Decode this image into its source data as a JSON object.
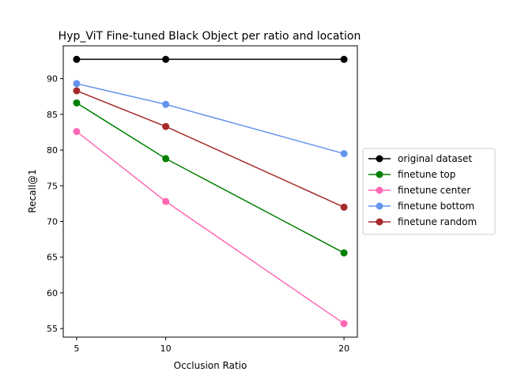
{
  "chart_data": {
    "type": "line",
    "title": "Hyp_ViT Fine-tuned Black Object per ratio and location",
    "xlabel": "Occlusion Ratio",
    "ylabel": "Recall@1",
    "x": [
      5,
      10,
      20
    ],
    "x_ticks": [
      "5",
      "10",
      "20"
    ],
    "xlim": [
      4.25,
      20.75
    ],
    "ylim": [
      53.8,
      94.6
    ],
    "y_ticks": [
      55,
      60,
      65,
      70,
      75,
      80,
      85,
      90
    ],
    "grid": false,
    "legend_position": "outside-right",
    "series": [
      {
        "name": "original dataset",
        "color": "#000000",
        "values": [
          92.7,
          92.7,
          92.7
        ]
      },
      {
        "name": "finetune top",
        "color": "#008000",
        "values": [
          86.6,
          78.8,
          65.6
        ]
      },
      {
        "name": "finetune center",
        "color": "#ff69b4",
        "values": [
          82.6,
          72.8,
          55.7
        ]
      },
      {
        "name": "finetune bottom",
        "color": "#6495ed",
        "values": [
          89.3,
          86.4,
          79.5
        ]
      },
      {
        "name": "finetune random",
        "color": "#a52a2a",
        "values": [
          88.3,
          83.3,
          72.0
        ]
      }
    ]
  }
}
